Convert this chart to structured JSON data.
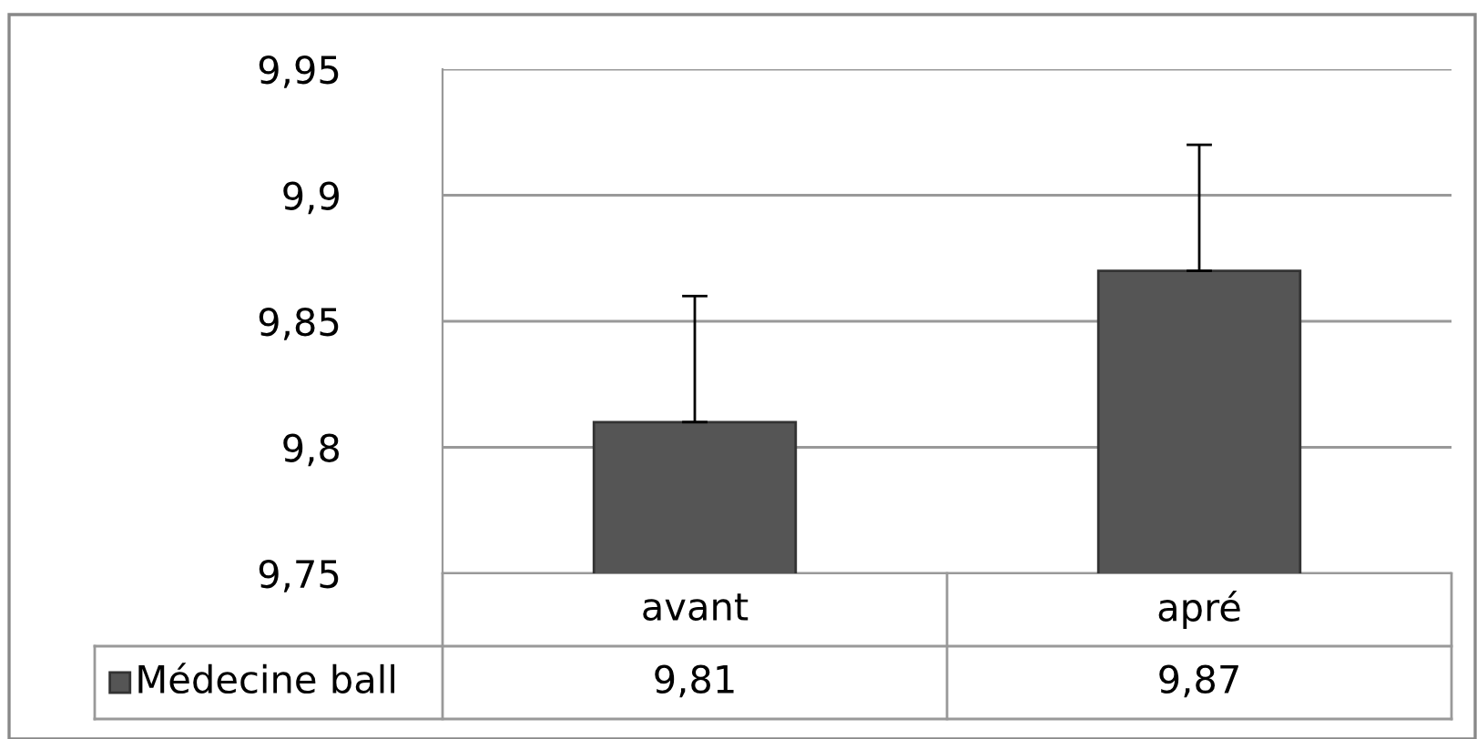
{
  "chart_data": {
    "type": "bar",
    "categories": [
      "avant",
      "apré"
    ],
    "series": [
      {
        "name": "Médecine ball",
        "color": "#555555",
        "values": [
          9.81,
          9.87
        ],
        "errors": [
          [
            9.81,
            9.86
          ],
          [
            9.87,
            9.92
          ]
        ],
        "value_labels": [
          "9,81",
          "9,87"
        ]
      }
    ],
    "ylim": [
      9.75,
      9.95
    ],
    "yticks": [
      {
        "value": 9.75,
        "label": "9,75"
      },
      {
        "value": 9.8,
        "label": "9,8"
      },
      {
        "value": 9.85,
        "label": "9,85"
      },
      {
        "value": 9.9,
        "label": "9,9"
      },
      {
        "value": 9.95,
        "label": "9,95"
      }
    ],
    "grid": "y",
    "legend": "bottom"
  }
}
